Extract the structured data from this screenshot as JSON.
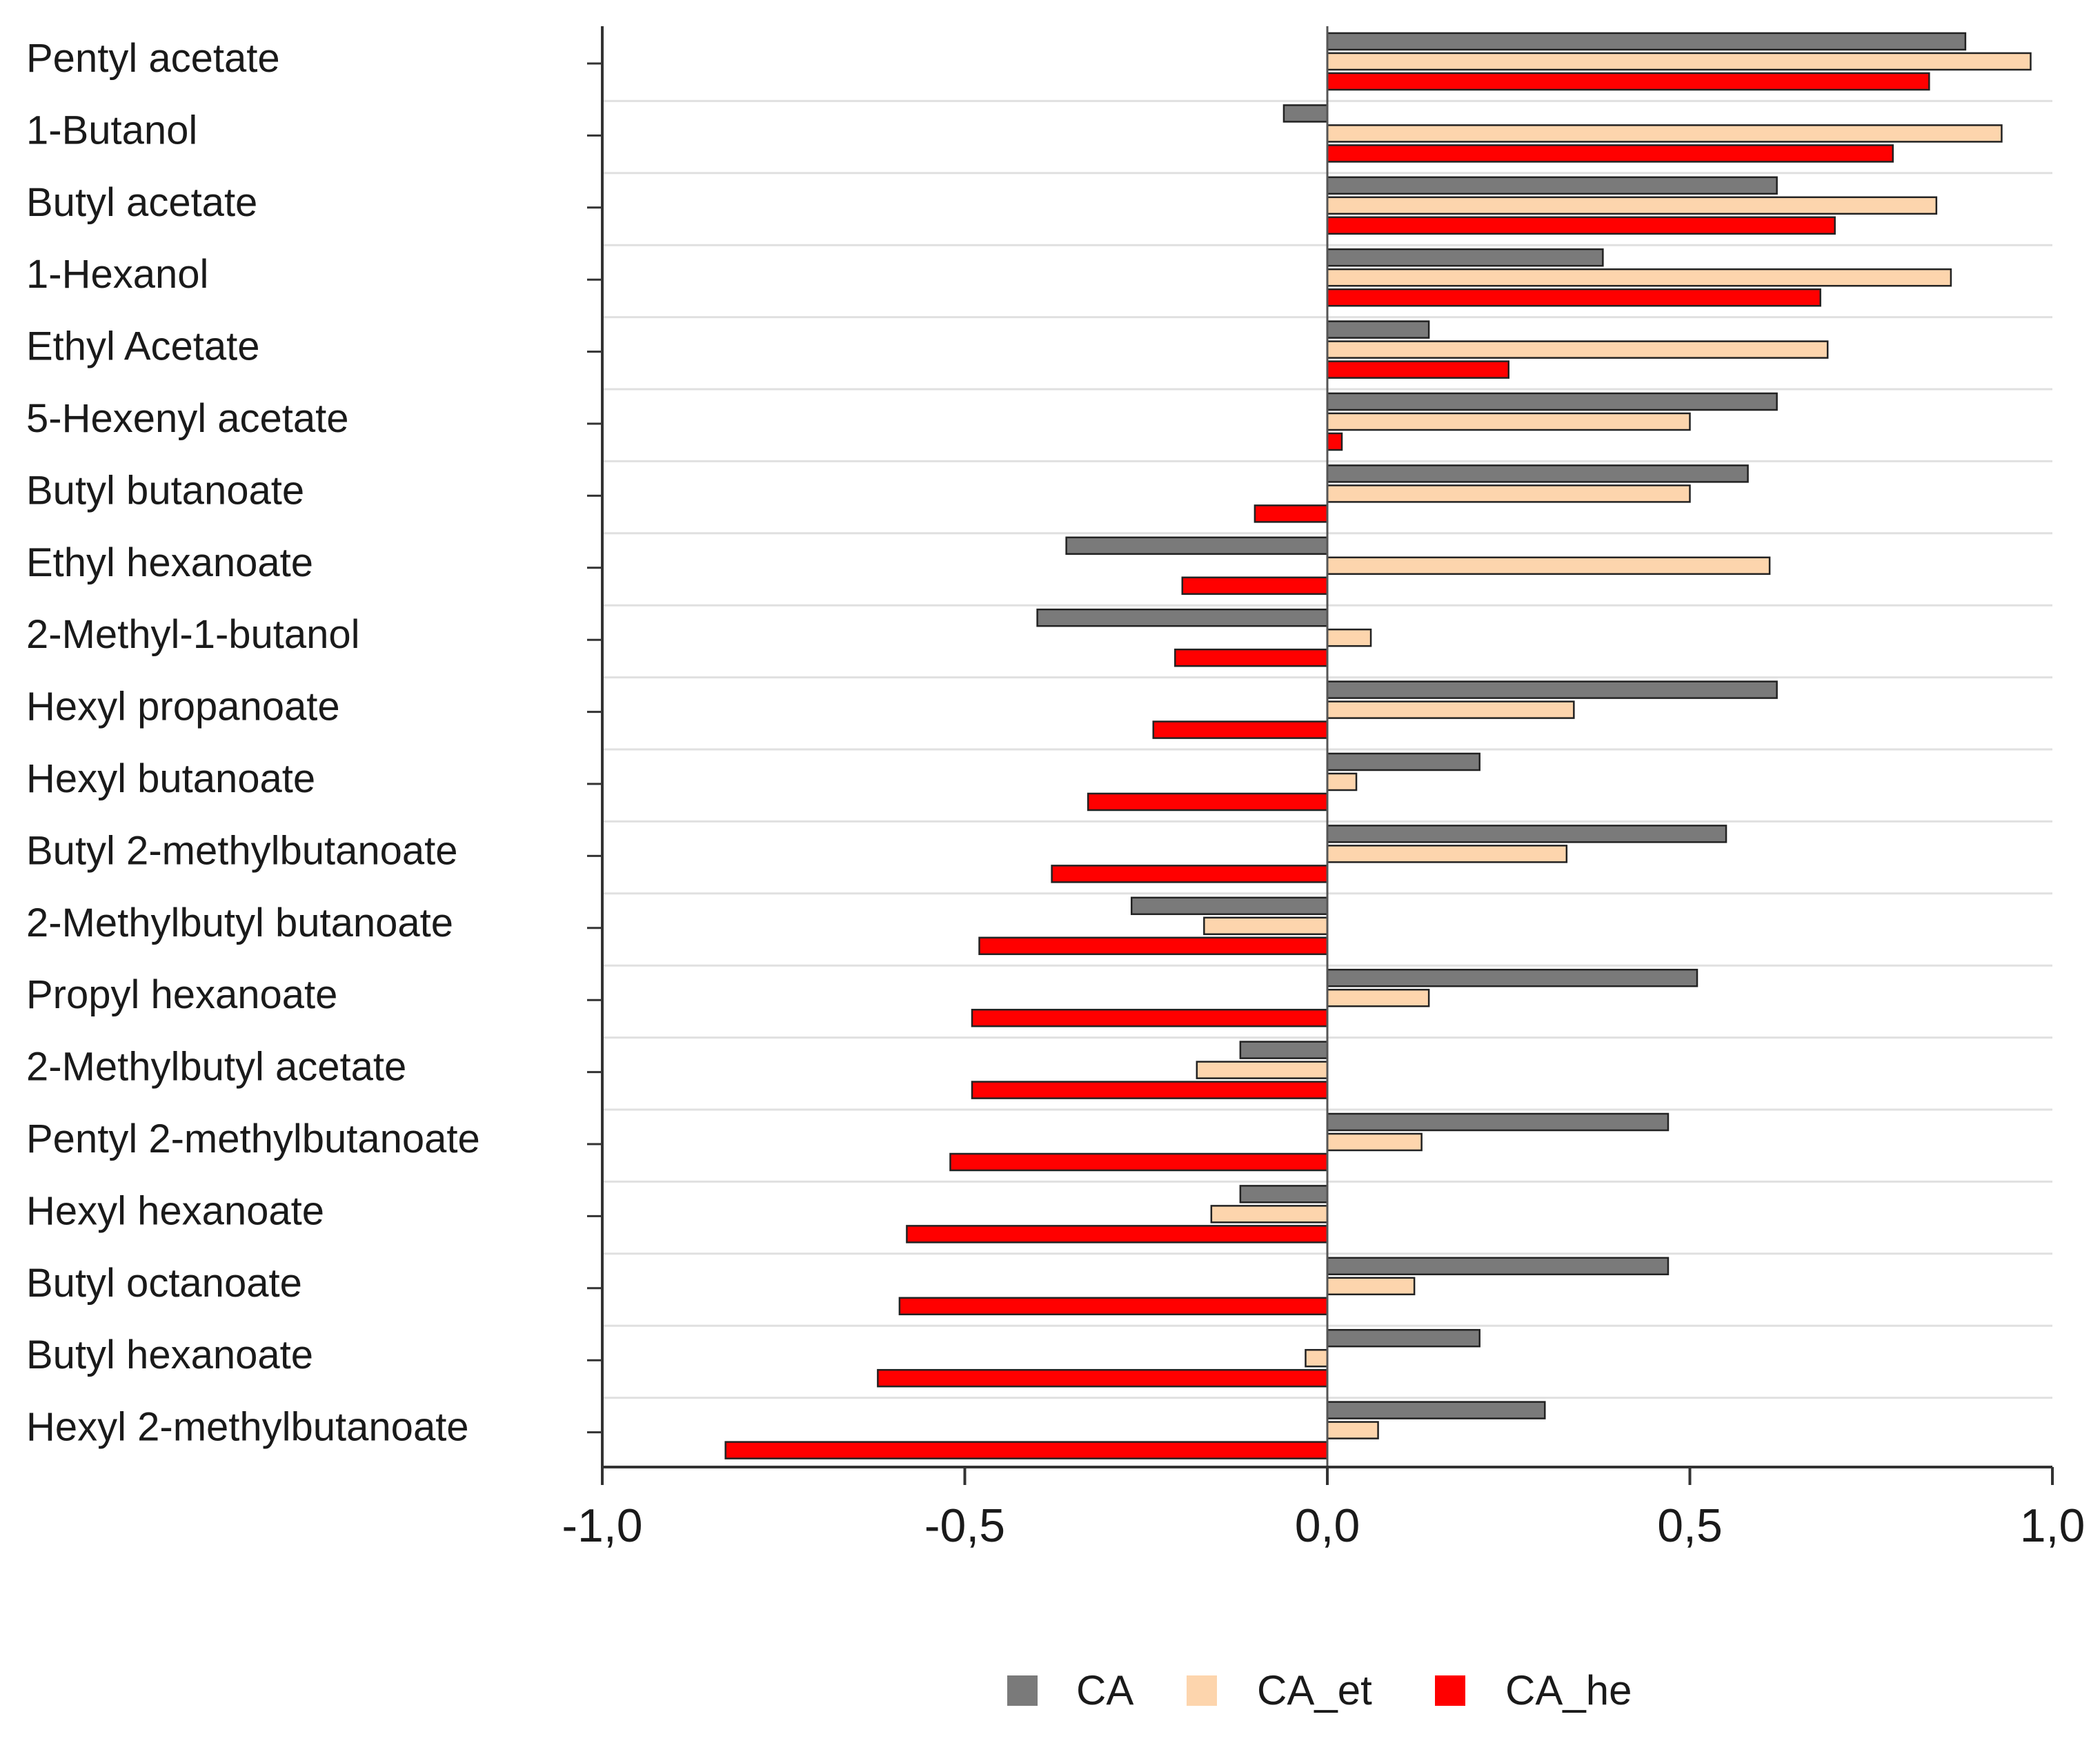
{
  "chart_data": {
    "type": "bar",
    "orientation": "horizontal",
    "title": "",
    "xlabel": "",
    "ylabel": "",
    "xlim": [
      -1.0,
      1.0
    ],
    "xticks": [
      -1.0,
      -0.5,
      0.0,
      0.5,
      1.0
    ],
    "xtick_labels": [
      "-1,0",
      "-0,5",
      "0,0",
      "0,5",
      "1,0"
    ],
    "grid": "horizontal",
    "legend_position": "bottom",
    "categories": [
      "Pentyl acetate",
      "1-Butanol",
      "Butyl acetate",
      "1-Hexanol",
      "Ethyl Acetate",
      "5-Hexenyl acetate",
      "Butyl butanoate",
      "Ethyl hexanoate",
      "2-Methyl-1-butanol",
      "Hexyl propanoate",
      "Hexyl butanoate",
      "Butyl 2-methylbutanoate",
      "2-Methylbutyl butanoate",
      "Propyl hexanoate",
      "2-Methylbutyl acetate",
      "Pentyl 2-methylbutanoate",
      "Hexyl hexanoate",
      "Butyl octanoate",
      "Butyl hexanoate",
      "Hexyl 2-methylbutanoate"
    ],
    "series": [
      {
        "name": "CA",
        "color": "#7a7a7a",
        "values": [
          0.88,
          -0.06,
          0.62,
          0.38,
          0.14,
          0.62,
          0.58,
          -0.36,
          -0.4,
          0.62,
          0.21,
          0.55,
          -0.27,
          0.51,
          -0.12,
          0.47,
          -0.12,
          0.47,
          0.21,
          0.3
        ]
      },
      {
        "name": "CA_et",
        "color": "#fdd5ad",
        "values": [
          0.97,
          0.93,
          0.84,
          0.86,
          0.69,
          0.5,
          0.5,
          0.61,
          0.06,
          0.34,
          0.04,
          0.33,
          -0.17,
          0.14,
          -0.18,
          0.13,
          -0.16,
          0.12,
          -0.03,
          0.07
        ]
      },
      {
        "name": "CA_he",
        "color": "#ff0000",
        "values": [
          0.83,
          0.78,
          0.7,
          0.68,
          0.25,
          0.02,
          -0.1,
          -0.2,
          -0.21,
          -0.24,
          -0.33,
          -0.38,
          -0.48,
          -0.49,
          -0.49,
          -0.52,
          -0.58,
          -0.59,
          -0.62,
          -0.83
        ]
      }
    ]
  }
}
